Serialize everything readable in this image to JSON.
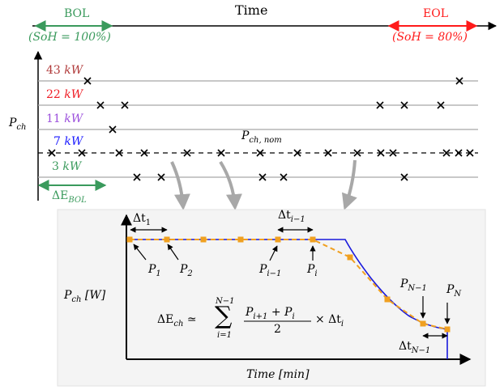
{
  "colors": {
    "bol": "#3a9a5c",
    "eol": "#ff1a1a",
    "kw43": "#b03a3a",
    "kw22": "#ee1c24",
    "kw11": "#9b4fdc",
    "kw7": "#1a1aff",
    "kw3": "#3a9a5c",
    "curve_blue": "#1a1adc",
    "curve_orange": "#f0a020",
    "panel": "#f4f4f4",
    "arrow_gray": "#a8a8a8"
  },
  "top": {
    "time_label": "Time",
    "bol_label": "BOL",
    "bol_soh": "(SoH = 100%)",
    "eol_label": "EOL",
    "eol_soh": "(SoH = 80%)",
    "y_axis_label": "P",
    "y_axis_sub": "ch",
    "levels": [
      {
        "value": "43",
        "unit": "kW"
      },
      {
        "value": "22",
        "unit": "kW"
      },
      {
        "value": "11",
        "unit": "kW"
      },
      {
        "value": "7",
        "unit": "kW"
      },
      {
        "value": "3",
        "unit": "kW"
      }
    ],
    "nominal_label": "P",
    "nominal_sub": "ch, nom",
    "delta_e_bol": "ΔE",
    "delta_e_bol_sub": "BOL"
  },
  "bottom": {
    "y_axis_label": "P",
    "y_axis_sub": "ch",
    "y_axis_unit": "[W]",
    "x_axis_label": "Time",
    "x_axis_unit": "[min]",
    "formula": {
      "lhs": "ΔE",
      "lhs_sub": "ch",
      "rel": "≃",
      "sum_top": "N−1",
      "sum_bottom": "i=1",
      "num": "P",
      "num_sub1": "i+1",
      "num_plus": " + P",
      "num_sub2": "i",
      "den": "2",
      "times": "× Δt",
      "times_sub": "i"
    },
    "dt1": "Δt",
    "dt1_sub": "1",
    "dti1": "Δt",
    "dti1_sub": "i−1",
    "dtn1": "Δt",
    "dtn1_sub": "N−1",
    "points": [
      {
        "name": "P",
        "sub": "1"
      },
      {
        "name": "P",
        "sub": "2"
      },
      {
        "name": "P",
        "sub": "i−1"
      },
      {
        "name": "P",
        "sub": "i"
      },
      {
        "name": "P",
        "sub": "N−1"
      },
      {
        "name": "P",
        "sub": "N"
      }
    ]
  }
}
